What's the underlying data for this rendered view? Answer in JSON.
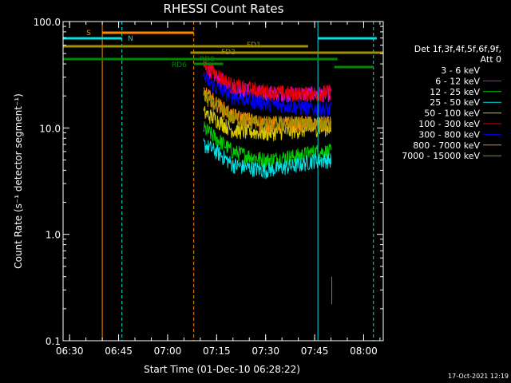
{
  "chart_data": {
    "type": "line",
    "title": "RHESSI Count Rates",
    "xlabel": "Start Time (01-Dec-10 06:28:22)",
    "ylabel": "Count Rate (s⁻¹ detector segment⁻¹)",
    "y_scale": "log",
    "ylim": [
      0.1,
      100
    ],
    "xlim": [
      "06:28",
      "08:06"
    ],
    "x_ticks": [
      "06:30",
      "06:45",
      "07:00",
      "07:15",
      "07:30",
      "07:45",
      "08:00"
    ],
    "y_ticks": [
      "0.1",
      "1.0",
      "10.0",
      "100.0"
    ],
    "grid": false,
    "legend_placement": "top-right",
    "legend_header": [
      "Det 1f,3f,4f,5f,6f,9f,",
      "Att 0"
    ],
    "series": [
      {
        "name": "3 - 6 keV",
        "color": "#000000",
        "x": [
          "07:11",
          "07:15",
          "07:20",
          "07:30",
          "07:40",
          "07:45",
          "07:50"
        ],
        "values": [
          45,
          30,
          22,
          17,
          15,
          13,
          13
        ]
      },
      {
        "name": "6 - 12 keV",
        "color": "#e000e0",
        "x": [
          "07:11",
          "07:15",
          "07:20",
          "07:30",
          "07:40",
          "07:45",
          "07:50"
        ],
        "values": [
          40,
          30,
          24,
          21,
          21,
          21,
          21
        ]
      },
      {
        "name": "12 - 25 keV",
        "color": "#00cc00",
        "x": [
          "07:11",
          "07:15",
          "07:20",
          "07:30",
          "07:40",
          "07:45",
          "07:50"
        ],
        "values": [
          10,
          8,
          6,
          5,
          5.5,
          6,
          6
        ]
      },
      {
        "name": "25 - 50 keV",
        "color": "#00e0e0",
        "x": [
          "07:11",
          "07:15",
          "07:20",
          "07:30",
          "07:40",
          "07:45",
          "07:50"
        ],
        "values": [
          7,
          6,
          4.5,
          4,
          4.5,
          5,
          5
        ]
      },
      {
        "name": "50 - 100 keV",
        "color": "#d8c800",
        "x": [
          "07:11",
          "07:15",
          "07:20",
          "07:30",
          "07:40",
          "07:45",
          "07:50"
        ],
        "values": [
          14,
          12,
          9.5,
          9,
          9.5,
          10,
          10
        ]
      },
      {
        "name": "100 - 300 keV",
        "color": "#e00000",
        "x": [
          "07:11",
          "07:15",
          "07:20",
          "07:30",
          "07:40",
          "07:45",
          "07:50"
        ],
        "values": [
          40,
          32,
          25,
          22,
          21,
          21,
          22
        ]
      },
      {
        "name": "300 - 800 keV",
        "color": "#0000ff",
        "x": [
          "07:11",
          "07:15",
          "07:20",
          "07:30",
          "07:40",
          "07:45",
          "07:50"
        ],
        "values": [
          30,
          24,
          20,
          17,
          16,
          15,
          15
        ]
      },
      {
        "name": "800 - 7000 keV",
        "color": "#ff8800",
        "x": [
          "07:11",
          "07:15",
          "07:20",
          "07:30",
          "07:40",
          "07:45",
          "07:50"
        ],
        "values": [
          22,
          17,
          13,
          11,
          11,
          11,
          11
        ]
      },
      {
        "name": "7000 - 15000 keV",
        "color": "#a09000",
        "x": [
          "07:11",
          "07:15",
          "07:20",
          "07:30",
          "07:40",
          "07:45",
          "07:50"
        ],
        "values": [
          20,
          16,
          12.5,
          11,
          11,
          11,
          11
        ]
      }
    ],
    "flags": [
      {
        "label": "S",
        "color": "#ff8800",
        "start": "06:40",
        "end": "07:08"
      },
      {
        "label": "N",
        "color": "#00e0e0",
        "start": "06:28",
        "end": "06:46"
      },
      {
        "label": "FD1",
        "color": "#a09000",
        "start": "06:28",
        "end": "07:43"
      },
      {
        "label": "FD2",
        "color": "#a09000",
        "start": "07:07",
        "end": "08:05"
      },
      {
        "label": "RD6",
        "color": "#008800",
        "start": "06:28",
        "end": "07:52"
      },
      {
        "label": "RD0",
        "color": "#008800",
        "start": "07:08",
        "end": "07:17"
      }
    ],
    "markers": [
      {
        "time": "06:40",
        "color": "#ff8800",
        "style": "solid"
      },
      {
        "time": "06:46",
        "color": "#00e0e0",
        "style": "dashed"
      },
      {
        "time": "07:08",
        "color": "#ff8800",
        "style": "dashed"
      },
      {
        "time": "07:46",
        "color": "#00e0e0",
        "style": "solid"
      },
      {
        "time": "08:03",
        "color": "#00e0e0",
        "style": "dashed"
      }
    ]
  },
  "footer_timestamp": "17-Oct-2021 12:19"
}
